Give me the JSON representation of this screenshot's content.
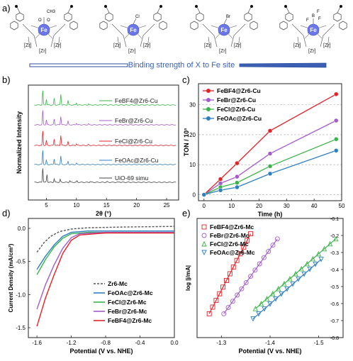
{
  "panel_labels": {
    "a": "a)",
    "b": "b)",
    "c": "c)",
    "d": "d)",
    "e": "e)"
  },
  "panel_a": {
    "arrow_label": "Binding strength of X to Fe site",
    "structures": [
      {
        "metal": "Fe",
        "ligand": "OAc",
        "ligand_atoms": [
          "O",
          "O",
          "CH3"
        ]
      },
      {
        "metal": "Fe",
        "ligand": "Cl",
        "ligand_atoms": [
          "Cl"
        ]
      },
      {
        "metal": "Fe",
        "ligand": "Br",
        "ligand_atoms": [
          "Br"
        ]
      },
      {
        "metal": "Fe",
        "ligand": "BF4",
        "ligand_atoms": [
          "F",
          "B",
          "F",
          "F"
        ]
      }
    ],
    "zr_label": "[Zr]"
  },
  "chart_data": [
    {
      "panel": "b",
      "type": "line",
      "xlabel": "2θ (°)",
      "ylabel": "Normalized Intensity",
      "xlim": [
        2,
        27
      ],
      "xticks": [
        5,
        10,
        15,
        20,
        25
      ],
      "series": [
        {
          "name": "FeBF4@Zr6-Cu",
          "color": "#3bb34a",
          "offset": 4,
          "peaks": [
            [
              4.4,
              1.0
            ],
            [
              5.0,
              0.4
            ],
            [
              6.3,
              0.45
            ],
            [
              7.4,
              0.75
            ],
            [
              8.6,
              0.3
            ],
            [
              10.0,
              0.15
            ],
            [
              12.0,
              0.08
            ],
            [
              14.5,
              0.05
            ]
          ]
        },
        {
          "name": "FeBr@Zr6-Cu",
          "color": "#a35cc9",
          "offset": 3,
          "peaks": [
            [
              4.4,
              1.0
            ],
            [
              5.0,
              0.35
            ],
            [
              6.3,
              0.4
            ],
            [
              7.4,
              0.6
            ],
            [
              8.6,
              0.25
            ],
            [
              10.0,
              0.12
            ],
            [
              12.0,
              0.07
            ]
          ]
        },
        {
          "name": "FeCl@Zr6-Cu",
          "color": "#e0242a",
          "offset": 2,
          "peaks": [
            [
              4.4,
              1.0
            ],
            [
              5.0,
              0.35
            ],
            [
              6.3,
              0.45
            ],
            [
              7.4,
              0.7
            ],
            [
              8.6,
              0.25
            ],
            [
              10.0,
              0.12
            ],
            [
              12.0,
              0.06
            ]
          ]
        },
        {
          "name": "FeOAc@Zr6-Cu",
          "color": "#2d7fc1",
          "offset": 1,
          "peaks": [
            [
              4.4,
              1.0
            ],
            [
              5.0,
              0.3
            ],
            [
              6.3,
              0.4
            ],
            [
              7.4,
              0.6
            ],
            [
              8.6,
              0.22
            ],
            [
              10.0,
              0.1
            ]
          ]
        },
        {
          "name": "UiO-69 simu",
          "color": "#444444",
          "offset": 0,
          "peaks": [
            [
              4.4,
              1.0
            ],
            [
              5.1,
              0.55
            ],
            [
              6.3,
              0.25
            ],
            [
              7.3,
              0.2
            ],
            [
              8.9,
              0.12
            ],
            [
              10.1,
              0.1
            ],
            [
              12.3,
              0.06
            ],
            [
              15.1,
              0.05
            ],
            [
              17.2,
              0.04
            ]
          ]
        }
      ]
    },
    {
      "panel": "c",
      "type": "line",
      "xlabel": "Time (h)",
      "ylabel": "TON / 10³",
      "xlim": [
        -2,
        50
      ],
      "ylim": [
        -2,
        37
      ],
      "xticks": [
        0,
        10,
        20,
        30,
        40,
        50
      ],
      "yticks": [
        0,
        10,
        20,
        30
      ],
      "grid": "horizontal dashed",
      "legend": "top-left",
      "x": [
        0,
        6,
        12,
        24,
        48
      ],
      "series": [
        {
          "name": "FeBF4@Zr6-Cu",
          "color": "#e0242a",
          "values": [
            0,
            5.2,
            10.5,
            21.3,
            33.5
          ]
        },
        {
          "name": "FeBr@Zr6-Cu",
          "color": "#a35cc9",
          "values": [
            0,
            3.8,
            6.0,
            13.7,
            24.7
          ]
        },
        {
          "name": "FeCl@Zr6-Cu",
          "color": "#3bb34a",
          "values": [
            0,
            2.5,
            4.0,
            9.5,
            18.5
          ]
        },
        {
          "name": "FeOAc@Zr6-Cu",
          "color": "#2d7fc1",
          "values": [
            0,
            1.5,
            2.5,
            7.0,
            14.7
          ]
        }
      ]
    },
    {
      "panel": "d",
      "type": "line",
      "xlabel": "Potential (V vs. NHE)",
      "ylabel": "Current Density (mA/cm²)",
      "xlim": [
        -1.7,
        0.0
      ],
      "ylim": [
        -1.65,
        0.15
      ],
      "xticks": [
        -1.6,
        -1.2,
        -0.8,
        -0.4,
        0.0
      ],
      "yticks": [
        0.0,
        -0.5,
        -1.0,
        -1.5
      ],
      "legend": "bottom-right",
      "series": [
        {
          "name": "Zr6-Mc",
          "color": "#555555",
          "dash": true,
          "points": [
            [
              -1.6,
              -0.36
            ],
            [
              -1.52,
              -0.22
            ],
            [
              -1.44,
              -0.12
            ],
            [
              -1.34,
              -0.05
            ],
            [
              -1.2,
              -0.01
            ],
            [
              -1.0,
              0.01
            ],
            [
              -0.6,
              0.02
            ],
            [
              0.0,
              0.03
            ]
          ]
        },
        {
          "name": "FeOAc@Zr6-Mc",
          "color": "#2d7fc1",
          "points": [
            [
              -1.6,
              -0.62
            ],
            [
              -1.5,
              -0.42
            ],
            [
              -1.4,
              -0.25
            ],
            [
              -1.3,
              -0.12
            ],
            [
              -1.2,
              -0.06
            ],
            [
              -1.0,
              -0.04
            ],
            [
              -0.5,
              -0.04
            ],
            [
              0.0,
              -0.04
            ]
          ]
        },
        {
          "name": "FeCl@Zr6-Mc",
          "color": "#3bb34a",
          "points": [
            [
              -1.6,
              -0.7
            ],
            [
              -1.5,
              -0.47
            ],
            [
              -1.4,
              -0.28
            ],
            [
              -1.3,
              -0.15
            ],
            [
              -1.2,
              -0.08
            ],
            [
              -1.0,
              -0.06
            ],
            [
              -0.5,
              -0.06
            ],
            [
              0.0,
              -0.06
            ]
          ]
        },
        {
          "name": "FeBr@Zr6-Mc",
          "color": "#a35cc9",
          "points": [
            [
              -1.6,
              -1.22
            ],
            [
              -1.5,
              -0.85
            ],
            [
              -1.4,
              -0.55
            ],
            [
              -1.3,
              -0.3
            ],
            [
              -1.2,
              -0.14
            ],
            [
              -1.1,
              -0.08
            ],
            [
              -0.8,
              -0.06
            ],
            [
              0.0,
              -0.06
            ]
          ]
        },
        {
          "name": "FeBF4@Zr6-Mc",
          "color": "#e0242a",
          "points": [
            [
              -1.6,
              -1.48
            ],
            [
              -1.5,
              -1.05
            ],
            [
              -1.4,
              -0.7
            ],
            [
              -1.3,
              -0.38
            ],
            [
              -1.2,
              -0.18
            ],
            [
              -1.1,
              -0.1
            ],
            [
              -0.8,
              -0.07
            ],
            [
              0.0,
              -0.07
            ]
          ]
        }
      ]
    },
    {
      "panel": "e",
      "type": "scatter",
      "xlabel": "Potential (V vs. NHE)",
      "ylabel": "log |j/mA|",
      "xlim": [
        -1.25,
        -1.55
      ],
      "ylim": [
        -0.8,
        -0.1
      ],
      "xticks": [
        -1.3,
        -1.4,
        -1.5
      ],
      "yticks": [
        -0.1,
        -0.2,
        -0.3,
        -0.4,
        -0.5,
        -0.6,
        -0.7,
        -0.8
      ],
      "legend": "top-left",
      "series": [
        {
          "name": "FeBF4@Zr6-Mc",
          "color": "#e0242a",
          "marker": "square",
          "start": [
            -1.275,
            -0.66
          ],
          "end": [
            -1.36,
            -0.19
          ],
          "n": 13
        },
        {
          "name": "FeBr@Zr6-Mc",
          "color": "#a35cc9",
          "marker": "circle",
          "start": [
            -1.305,
            -0.66
          ],
          "end": [
            -1.415,
            -0.22
          ],
          "n": 13
        },
        {
          "name": "FeCl@Zr6-Mc",
          "color": "#3bb34a",
          "marker": "triangle-up",
          "start": [
            -1.37,
            -0.63
          ],
          "end": [
            -1.535,
            -0.22
          ],
          "n": 15
        },
        {
          "name": "FeOAc@Zr6-Mc",
          "color": "#2d7fc1",
          "marker": "triangle-down",
          "start": [
            -1.365,
            -0.69
          ],
          "end": [
            -1.505,
            -0.34
          ],
          "n": 13
        }
      ]
    }
  ]
}
